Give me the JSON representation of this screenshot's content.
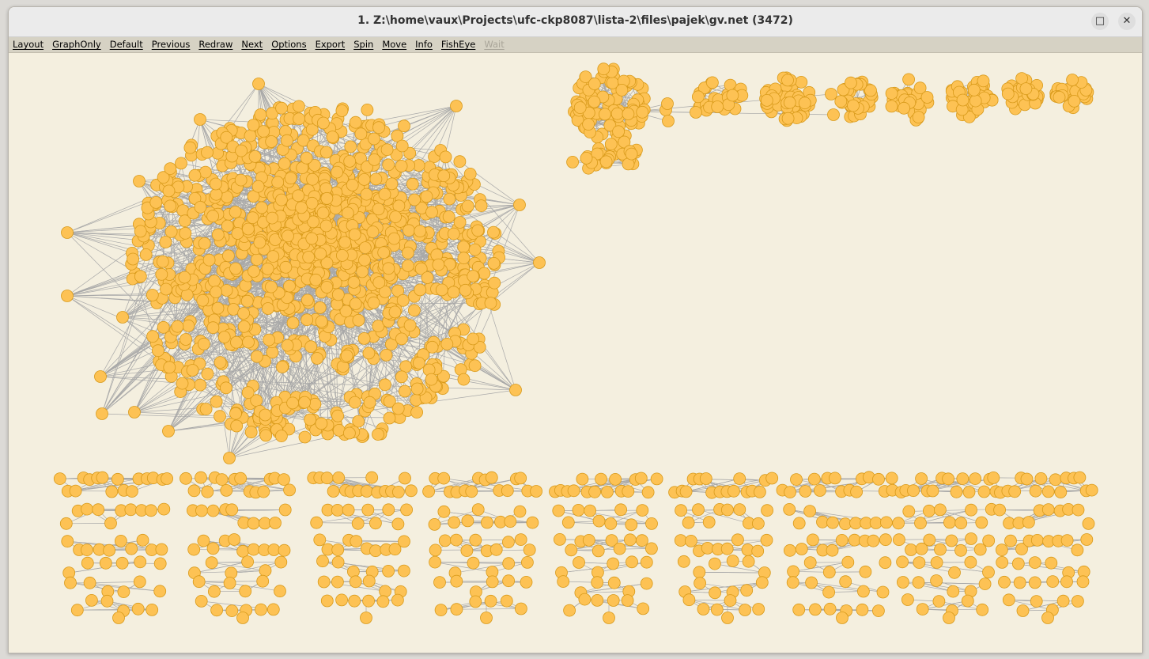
{
  "window": {
    "title": "1. Z:\\home\\vaux\\Projects\\ufc-ckp8087\\lista-2\\files\\pajek\\gv.net (3472)",
    "maximize_glyph": "□",
    "close_glyph": "✕"
  },
  "menu": [
    {
      "label": "Layout",
      "enabled": true
    },
    {
      "label": "GraphOnly",
      "enabled": true
    },
    {
      "label": "Default",
      "enabled": true
    },
    {
      "label": "Previous",
      "enabled": true
    },
    {
      "label": "Redraw",
      "enabled": true
    },
    {
      "label": "Next",
      "enabled": true
    },
    {
      "label": "Options",
      "enabled": true
    },
    {
      "label": "Export",
      "enabled": true
    },
    {
      "label": "Spin",
      "enabled": true
    },
    {
      "label": "Move",
      "enabled": true
    },
    {
      "label": "Info",
      "enabled": true
    },
    {
      "label": "FishEye",
      "enabled": true
    },
    {
      "label": "Wait",
      "enabled": false
    }
  ],
  "graph": {
    "vertex_fill": "#fdc254",
    "vertex_stroke": "#d89a1a",
    "edge_color": "#a8a8a8",
    "background": "#f4efdf"
  }
}
